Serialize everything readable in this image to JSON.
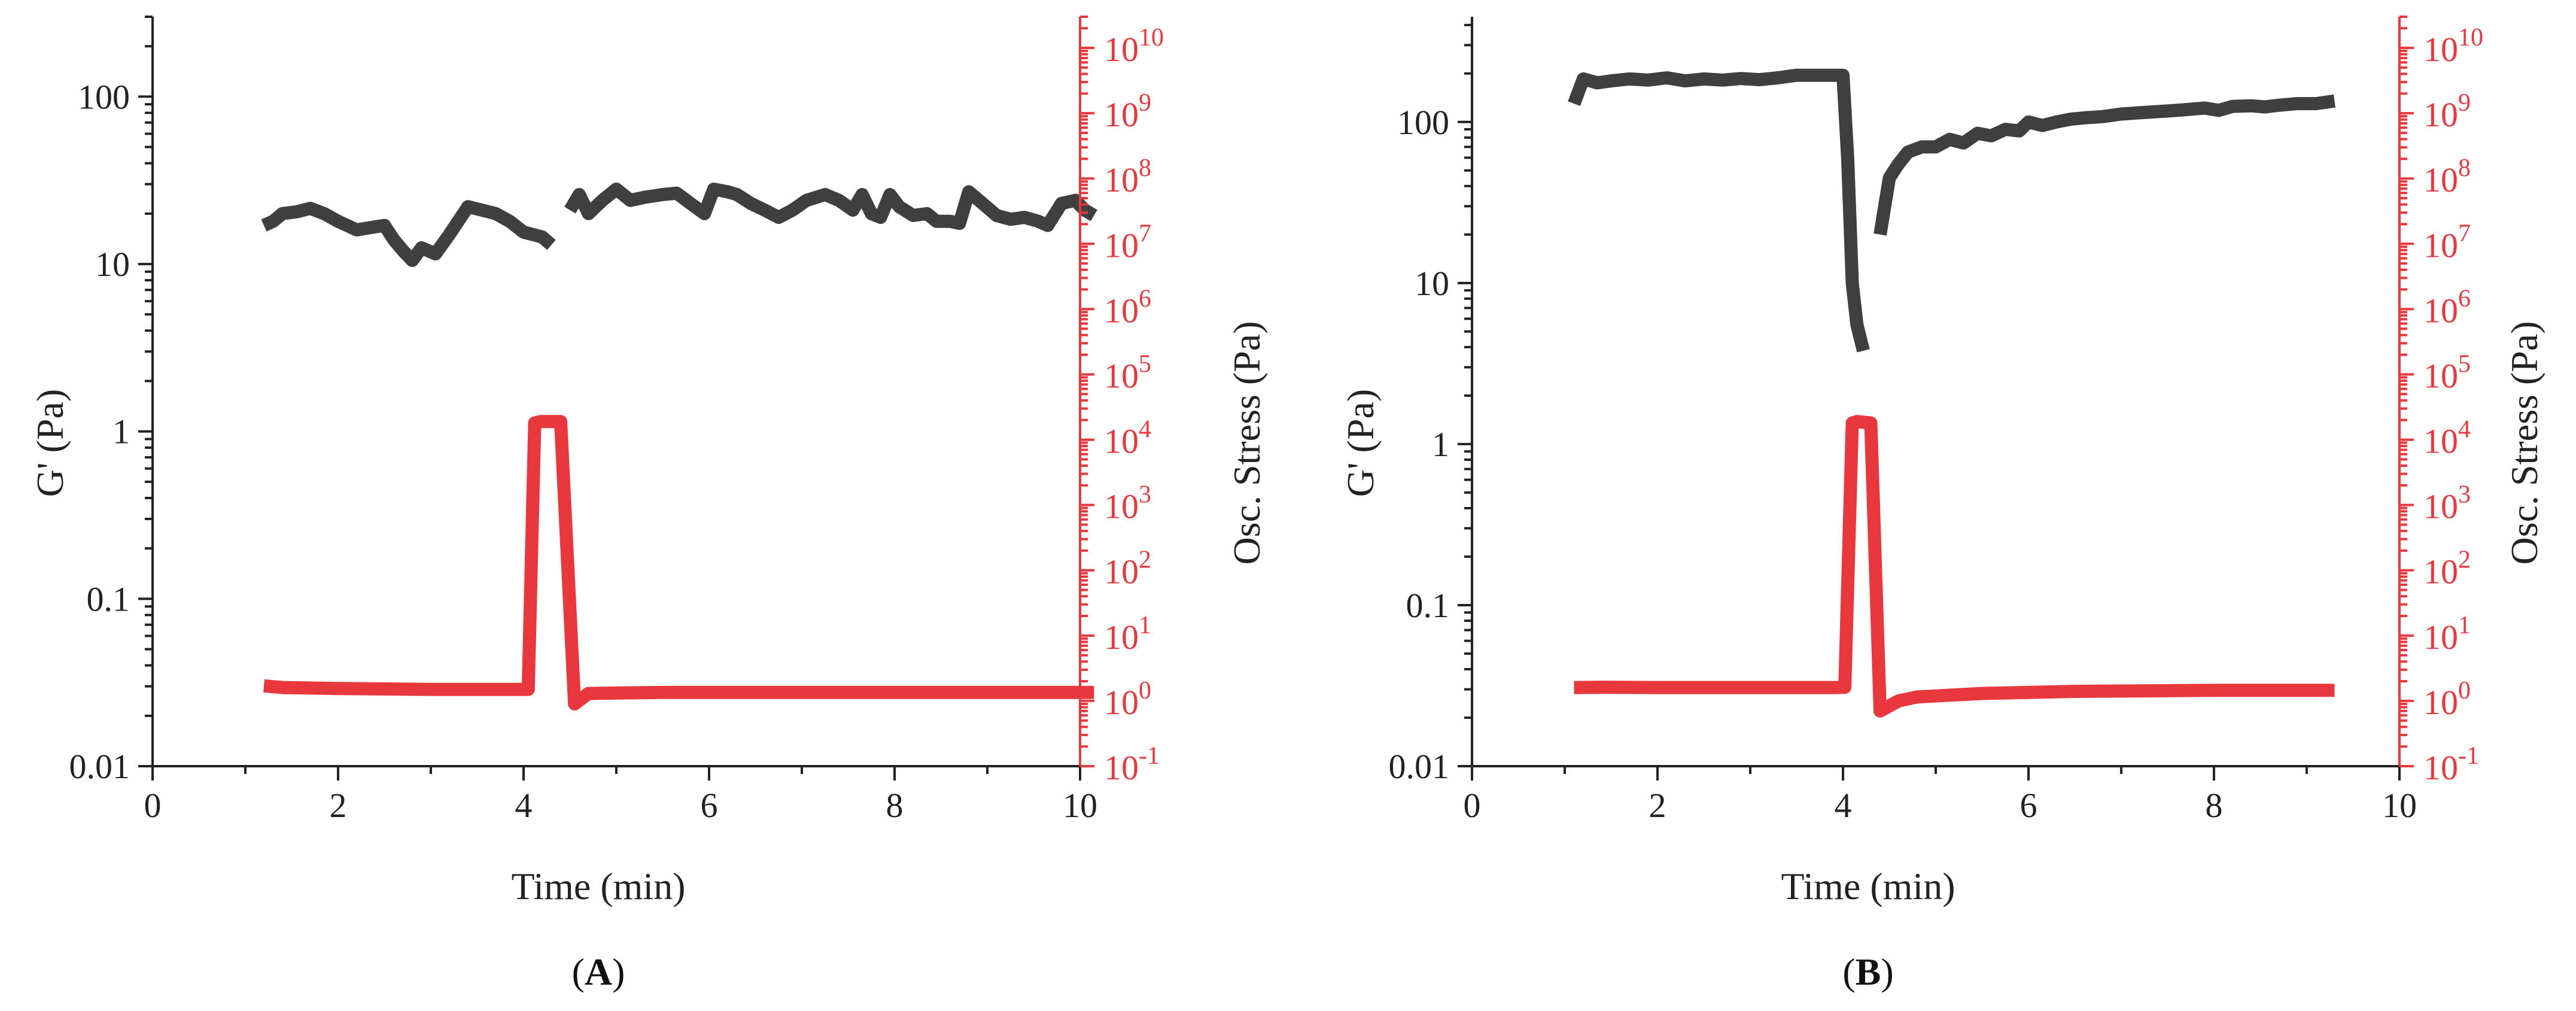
{
  "figure": {
    "colors": {
      "gprime": "#3f3f3f",
      "stress": "#e8383d",
      "axis": "#222222"
    }
  },
  "chart_data": [
    {
      "type": "line",
      "panel": "A",
      "panel_label": {
        "open": "(",
        "letter": "A",
        "close": ")"
      },
      "xlabel": "Time (min)",
      "ylabel_left": "G' (Pa)",
      "ylabel_right": "Osc. Stress (Pa)",
      "xlim": [
        0,
        10
      ],
      "ylim_left": [
        0.01,
        300
      ],
      "ylim_right": [
        0.1,
        30000000000
      ],
      "x_ticks": [
        "0",
        "2",
        "4",
        "6",
        "8",
        "10"
      ],
      "y_ticks_left": [
        "0.01",
        "0.1",
        "1",
        "10",
        "100"
      ],
      "y_ticks_right": [
        {
          "base": "10",
          "exp": "-1"
        },
        {
          "base": "10",
          "exp": "0"
        },
        {
          "base": "10",
          "exp": "1"
        },
        {
          "base": "10",
          "exp": "2"
        },
        {
          "base": "10",
          "exp": "3"
        },
        {
          "base": "10",
          "exp": "4"
        },
        {
          "base": "10",
          "exp": "5"
        },
        {
          "base": "10",
          "exp": "6"
        },
        {
          "base": "10",
          "exp": "7"
        },
        {
          "base": "10",
          "exp": "8"
        },
        {
          "base": "10",
          "exp": "9"
        },
        {
          "base": "10",
          "exp": "10"
        }
      ],
      "series": [
        {
          "name": "G'",
          "axis": "left",
          "color": "#3f3f3f",
          "segments": [
            [
              [
                1.2,
                17
              ],
              [
                1.3,
                18
              ],
              [
                1.4,
                20
              ],
              [
                1.55,
                20.5
              ],
              [
                1.7,
                21.5
              ],
              [
                1.85,
                20
              ],
              [
                2.0,
                18
              ],
              [
                2.2,
                16
              ],
              [
                2.35,
                16.5
              ],
              [
                2.5,
                17
              ],
              [
                2.6,
                14
              ],
              [
                2.7,
                12
              ],
              [
                2.8,
                10.5
              ],
              [
                2.9,
                12.5
              ],
              [
                3.05,
                11.5
              ],
              [
                3.2,
                15
              ],
              [
                3.4,
                22
              ],
              [
                3.55,
                21
              ],
              [
                3.7,
                20
              ],
              [
                3.85,
                18
              ],
              [
                4.0,
                15.5
              ],
              [
                4.1,
                15
              ],
              [
                4.2,
                14.5
              ],
              [
                4.3,
                13
              ]
            ],
            [
              [
                4.5,
                21
              ],
              [
                4.6,
                26
              ],
              [
                4.7,
                20
              ],
              [
                4.85,
                24
              ],
              [
                5.0,
                28
              ],
              [
                5.15,
                24
              ],
              [
                5.3,
                25
              ],
              [
                5.5,
                26
              ],
              [
                5.65,
                26.5
              ],
              [
                5.8,
                23
              ],
              [
                5.95,
                20
              ],
              [
                6.05,
                28
              ],
              [
                6.2,
                27
              ],
              [
                6.3,
                26
              ],
              [
                6.45,
                23
              ],
              [
                6.6,
                21
              ],
              [
                6.75,
                19
              ],
              [
                6.9,
                21
              ],
              [
                7.05,
                24
              ],
              [
                7.25,
                26
              ],
              [
                7.4,
                24
              ],
              [
                7.55,
                21
              ],
              [
                7.65,
                26
              ],
              [
                7.75,
                20
              ],
              [
                7.85,
                19
              ],
              [
                7.95,
                26
              ],
              [
                8.05,
                22
              ],
              [
                8.2,
                19.5
              ],
              [
                8.35,
                20
              ],
              [
                8.45,
                18
              ],
              [
                8.6,
                18
              ],
              [
                8.7,
                17.5
              ],
              [
                8.8,
                27
              ],
              [
                8.95,
                23
              ],
              [
                9.1,
                19.5
              ],
              [
                9.25,
                18.5
              ],
              [
                9.4,
                19
              ],
              [
                9.55,
                18
              ],
              [
                9.65,
                17
              ],
              [
                9.8,
                23
              ],
              [
                9.95,
                24
              ],
              [
                10.05,
                21
              ],
              [
                10.15,
                19.5
              ]
            ]
          ]
        },
        {
          "name": "Osc. Stress",
          "axis": "right",
          "color": "#e8383d",
          "segments": [
            [
              [
                1.2,
                1.7
              ],
              [
                1.4,
                1.6
              ],
              [
                2.0,
                1.55
              ],
              [
                3.0,
                1.5
              ],
              [
                3.9,
                1.5
              ],
              [
                4.05,
                1.5
              ],
              [
                4.12,
                18000
              ],
              [
                4.18,
                19000
              ],
              [
                4.4,
                19000
              ],
              [
                4.55,
                0.9
              ],
              [
                4.7,
                1.3
              ],
              [
                5.5,
                1.35
              ],
              [
                7.0,
                1.35
              ],
              [
                9.0,
                1.35
              ],
              [
                10.15,
                1.35
              ]
            ]
          ]
        }
      ]
    },
    {
      "type": "line",
      "panel": "B",
      "panel_label": {
        "open": "(",
        "letter": "B",
        "close": ")"
      },
      "xlabel": "Time (min)",
      "ylabel_left": "G' (Pa)",
      "ylabel_right": "Osc. Stress (Pa)",
      "xlim": [
        0,
        10
      ],
      "ylim_left": [
        0.01,
        450
      ],
      "ylim_right": [
        0.1,
        30000000000
      ],
      "x_ticks": [
        "0",
        "2",
        "4",
        "6",
        "8",
        "10"
      ],
      "y_ticks_left": [
        "0.01",
        "0.1",
        "1",
        "10",
        "100"
      ],
      "y_ticks_right": [
        {
          "base": "10",
          "exp": "-1"
        },
        {
          "base": "10",
          "exp": "0"
        },
        {
          "base": "10",
          "exp": "1"
        },
        {
          "base": "10",
          "exp": "2"
        },
        {
          "base": "10",
          "exp": "3"
        },
        {
          "base": "10",
          "exp": "4"
        },
        {
          "base": "10",
          "exp": "5"
        },
        {
          "base": "10",
          "exp": "6"
        },
        {
          "base": "10",
          "exp": "7"
        },
        {
          "base": "10",
          "exp": "8"
        },
        {
          "base": "10",
          "exp": "9"
        },
        {
          "base": "10",
          "exp": "10"
        }
      ],
      "series": [
        {
          "name": "G'",
          "axis": "left",
          "color": "#3f3f3f",
          "segments": [
            [
              [
                1.1,
                130
              ],
              [
                1.2,
                185
              ],
              [
                1.35,
                175
              ],
              [
                1.5,
                180
              ],
              [
                1.7,
                185
              ],
              [
                1.9,
                182
              ],
              [
                2.1,
                188
              ],
              [
                2.3,
                180
              ],
              [
                2.5,
                185
              ],
              [
                2.7,
                182
              ],
              [
                2.9,
                186
              ],
              [
                3.1,
                183
              ],
              [
                3.3,
                188
              ],
              [
                3.5,
                195
              ],
              [
                3.7,
                195
              ],
              [
                3.85,
                195
              ],
              [
                4.0,
                195
              ],
              [
                4.05,
                60
              ],
              [
                4.1,
                10
              ],
              [
                4.15,
                5.5
              ],
              [
                4.22,
                3.8
              ]
            ],
            [
              [
                4.4,
                20
              ],
              [
                4.5,
                45
              ],
              [
                4.6,
                55
              ],
              [
                4.7,
                65
              ],
              [
                4.85,
                70
              ],
              [
                5.0,
                70
              ],
              [
                5.15,
                78
              ],
              [
                5.3,
                74
              ],
              [
                5.45,
                85
              ],
              [
                5.6,
                82
              ],
              [
                5.75,
                90
              ],
              [
                5.9,
                88
              ],
              [
                6.0,
                100
              ],
              [
                6.15,
                95
              ],
              [
                6.3,
                100
              ],
              [
                6.45,
                104
              ],
              [
                6.6,
                106
              ],
              [
                6.8,
                108
              ],
              [
                7.0,
                112
              ],
              [
                7.2,
                114
              ],
              [
                7.4,
                116
              ],
              [
                7.6,
                118
              ],
              [
                7.75,
                120
              ],
              [
                7.9,
                122
              ],
              [
                8.05,
                118
              ],
              [
                8.2,
                125
              ],
              [
                8.4,
                126
              ],
              [
                8.55,
                124
              ],
              [
                8.7,
                127
              ],
              [
                8.9,
                130
              ],
              [
                9.1,
                130
              ],
              [
                9.3,
                135
              ]
            ]
          ]
        },
        {
          "name": "Osc. Stress",
          "axis": "right",
          "color": "#e8383d",
          "segments": [
            [
              [
                1.1,
                1.6
              ],
              [
                1.4,
                1.62
              ],
              [
                2.0,
                1.6
              ],
              [
                3.0,
                1.6
              ],
              [
                3.9,
                1.6
              ],
              [
                4.02,
                1.62
              ],
              [
                4.1,
                18000
              ],
              [
                4.15,
                19000
              ],
              [
                4.3,
                18000
              ],
              [
                4.4,
                0.7
              ],
              [
                4.6,
                1.0
              ],
              [
                4.8,
                1.15
              ],
              [
                5.5,
                1.3
              ],
              [
                6.5,
                1.4
              ],
              [
                8.0,
                1.45
              ],
              [
                9.3,
                1.45
              ]
            ]
          ]
        }
      ]
    }
  ]
}
